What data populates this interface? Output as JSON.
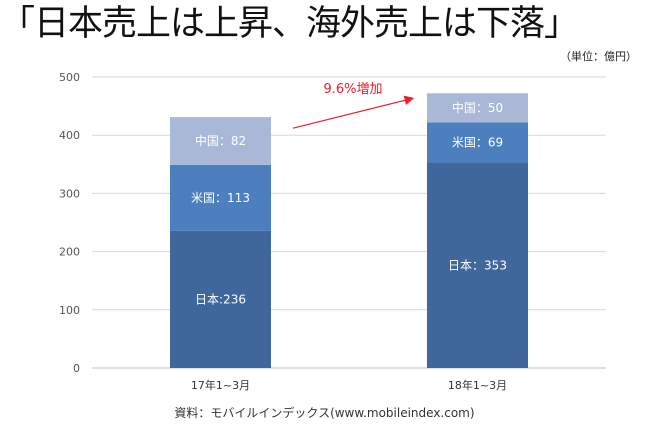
{
  "title": "「日本売上は上昇、海外売上は下落」",
  "unit_label": "（単位：億円）",
  "source": "資料：モバイルインデックス(www.mobileindex.com)",
  "chart_data": {
    "type": "bar",
    "stacked": true,
    "categories": [
      "17年1~3月",
      "18年1~3月"
    ],
    "series": [
      {
        "name": "日本",
        "values": [
          236,
          353
        ],
        "color": "#3f679b",
        "labels": [
          "日本:236",
          "日本：353"
        ]
      },
      {
        "name": "米国",
        "values": [
          113,
          69
        ],
        "color": "#4d7fbf",
        "labels": [
          "米国：113",
          "米国：69"
        ]
      },
      {
        "name": "中国",
        "values": [
          82,
          50
        ],
        "color": "#a9b8d6",
        "labels": [
          "中国：82",
          "中国：50"
        ]
      }
    ],
    "ylim": [
      0,
      500
    ],
    "yticks": [
      0,
      100,
      200,
      300,
      400,
      500
    ],
    "grid": true,
    "annotation": {
      "text": "9.6%増加",
      "color": "#e8202a"
    }
  }
}
